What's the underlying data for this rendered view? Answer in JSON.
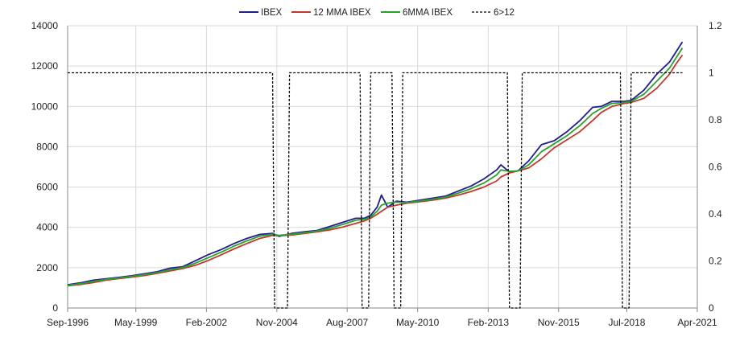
{
  "chart_data": {
    "type": "line",
    "title": "",
    "xlabel": "",
    "ylabel": "",
    "grid": true,
    "legend_position": "top",
    "x_axis": {
      "type": "date",
      "min": "1996-09-01",
      "max": "2021-04-01",
      "ticks": [
        "1996-09-01",
        "1999-05-01",
        "2002-02-01",
        "2004-11-01",
        "2007-08-01",
        "2010-05-01",
        "2013-02-01",
        "2015-11-01",
        "2018-07-01",
        "2021-04-01"
      ],
      "tick_labels": [
        "Sep-1996",
        "May-1999",
        "Feb-2002",
        "Nov-2004",
        "Aug-2007",
        "May-2010",
        "Feb-2013",
        "Nov-2015",
        "Jul-2018",
        "Apr-2021"
      ]
    },
    "y_axis_left": {
      "min": 0,
      "max": 14000,
      "ticks": [
        0,
        2000,
        4000,
        6000,
        8000,
        10000,
        12000,
        14000
      ],
      "tick_labels": [
        "0",
        "2000",
        "4000",
        "6000",
        "8000",
        "10000",
        "12000",
        "14000"
      ]
    },
    "y_axis_right": {
      "min": 0,
      "max": 1.2,
      "ticks": [
        0,
        0.2,
        0.4,
        0.6,
        0.8,
        1,
        1.2
      ],
      "tick_labels": [
        "0",
        "0.2",
        "0.4",
        "0.6",
        "0.8",
        "1",
        "1.2"
      ]
    },
    "series": [
      {
        "name": "IBEX",
        "axis": "left",
        "color": "#1f1f8a",
        "style": "solid",
        "points": [
          [
            "1996-09-01",
            1150
          ],
          [
            "1997-03-01",
            1250
          ],
          [
            "1997-09-01",
            1380
          ],
          [
            "1998-03-01",
            1450
          ],
          [
            "1998-09-01",
            1520
          ],
          [
            "1999-03-01",
            1600
          ],
          [
            "1999-09-01",
            1700
          ],
          [
            "2000-03-01",
            1800
          ],
          [
            "2000-09-01",
            1980
          ],
          [
            "2001-03-01",
            2050
          ],
          [
            "2001-09-01",
            2350
          ],
          [
            "2002-03-01",
            2650
          ],
          [
            "2002-09-01",
            2900
          ],
          [
            "2003-03-01",
            3200
          ],
          [
            "2003-09-01",
            3450
          ],
          [
            "2004-03-01",
            3650
          ],
          [
            "2004-09-01",
            3700
          ],
          [
            "2004-12-01",
            3550
          ],
          [
            "2005-06-01",
            3700
          ],
          [
            "2005-12-01",
            3780
          ],
          [
            "2006-06-01",
            3850
          ],
          [
            "2006-12-01",
            4050
          ],
          [
            "2007-06-01",
            4250
          ],
          [
            "2007-12-01",
            4450
          ],
          [
            "2008-04-01",
            4450
          ],
          [
            "2008-07-01",
            4600
          ],
          [
            "2008-10-01",
            5000
          ],
          [
            "2008-12-01",
            5600
          ],
          [
            "2009-03-01",
            5000
          ],
          [
            "2009-07-01",
            5300
          ],
          [
            "2009-12-01",
            5250
          ],
          [
            "2010-06-01",
            5350
          ],
          [
            "2010-12-01",
            5450
          ],
          [
            "2011-06-01",
            5550
          ],
          [
            "2011-12-01",
            5800
          ],
          [
            "2012-06-01",
            6050
          ],
          [
            "2012-12-01",
            6400
          ],
          [
            "2013-06-01",
            6850
          ],
          [
            "2013-08-01",
            7100
          ],
          [
            "2013-12-01",
            6750
          ],
          [
            "2014-04-01",
            6800
          ],
          [
            "2014-09-01",
            7300
          ],
          [
            "2015-03-01",
            8100
          ],
          [
            "2015-09-01",
            8300
          ],
          [
            "2016-03-01",
            8750
          ],
          [
            "2016-09-01",
            9300
          ],
          [
            "2017-03-01",
            9950
          ],
          [
            "2017-07-01",
            10000
          ],
          [
            "2017-12-01",
            10250
          ],
          [
            "2018-06-01",
            10250
          ],
          [
            "2018-09-01",
            10300
          ],
          [
            "2019-03-01",
            10800
          ],
          [
            "2019-09-01",
            11600
          ],
          [
            "2020-03-01",
            12200
          ],
          [
            "2020-06-01",
            12700
          ],
          [
            "2020-09-01",
            13200
          ]
        ]
      },
      {
        "name": "12 MMA IBEX",
        "axis": "left",
        "color": "#c0392b",
        "style": "solid",
        "points": [
          [
            "1996-09-01",
            1100
          ],
          [
            "1997-03-01",
            1170
          ],
          [
            "1997-09-01",
            1260
          ],
          [
            "1998-03-01",
            1380
          ],
          [
            "1998-09-01",
            1460
          ],
          [
            "1999-03-01",
            1530
          ],
          [
            "1999-09-01",
            1610
          ],
          [
            "2000-03-01",
            1720
          ],
          [
            "2000-09-01",
            1840
          ],
          [
            "2001-03-01",
            1960
          ],
          [
            "2001-09-01",
            2120
          ],
          [
            "2002-03-01",
            2360
          ],
          [
            "2002-09-01",
            2640
          ],
          [
            "2003-03-01",
            2930
          ],
          [
            "2003-09-01",
            3200
          ],
          [
            "2004-03-01",
            3450
          ],
          [
            "2004-09-01",
            3600
          ],
          [
            "2004-12-01",
            3580
          ],
          [
            "2005-06-01",
            3620
          ],
          [
            "2005-12-01",
            3700
          ],
          [
            "2006-06-01",
            3780
          ],
          [
            "2006-12-01",
            3880
          ],
          [
            "2007-06-01",
            4020
          ],
          [
            "2007-12-01",
            4200
          ],
          [
            "2008-04-01",
            4320
          ],
          [
            "2008-07-01",
            4450
          ],
          [
            "2008-10-01",
            4650
          ],
          [
            "2008-12-01",
            4800
          ],
          [
            "2009-03-01",
            5000
          ],
          [
            "2009-07-01",
            5100
          ],
          [
            "2009-12-01",
            5200
          ],
          [
            "2010-06-01",
            5270
          ],
          [
            "2010-12-01",
            5350
          ],
          [
            "2011-06-01",
            5450
          ],
          [
            "2011-12-01",
            5600
          ],
          [
            "2012-06-01",
            5780
          ],
          [
            "2012-12-01",
            6000
          ],
          [
            "2013-06-01",
            6300
          ],
          [
            "2013-08-01",
            6500
          ],
          [
            "2013-12-01",
            6700
          ],
          [
            "2014-04-01",
            6800
          ],
          [
            "2014-09-01",
            6950
          ],
          [
            "2015-03-01",
            7400
          ],
          [
            "2015-09-01",
            7950
          ],
          [
            "2016-03-01",
            8350
          ],
          [
            "2016-09-01",
            8750
          ],
          [
            "2017-03-01",
            9300
          ],
          [
            "2017-07-01",
            9700
          ],
          [
            "2017-12-01",
            10000
          ],
          [
            "2018-06-01",
            10150
          ],
          [
            "2018-09-01",
            10200
          ],
          [
            "2019-03-01",
            10400
          ],
          [
            "2019-09-01",
            10900
          ],
          [
            "2020-03-01",
            11600
          ],
          [
            "2020-06-01",
            12100
          ],
          [
            "2020-09-01",
            12550
          ]
        ]
      },
      {
        "name": "6MMA IBEX",
        "axis": "left",
        "color": "#2ca02c",
        "style": "solid",
        "points": [
          [
            "1996-09-01",
            1120
          ],
          [
            "1997-03-01",
            1210
          ],
          [
            "1997-09-01",
            1320
          ],
          [
            "1998-03-01",
            1420
          ],
          [
            "1998-09-01",
            1490
          ],
          [
            "1999-03-01",
            1570
          ],
          [
            "1999-09-01",
            1660
          ],
          [
            "2000-03-01",
            1760
          ],
          [
            "2000-09-01",
            1900
          ],
          [
            "2001-03-01",
            2010
          ],
          [
            "2001-09-01",
            2230
          ],
          [
            "2002-03-01",
            2500
          ],
          [
            "2002-09-01",
            2770
          ],
          [
            "2003-03-01",
            3070
          ],
          [
            "2003-09-01",
            3330
          ],
          [
            "2004-03-01",
            3560
          ],
          [
            "2004-09-01",
            3660
          ],
          [
            "2004-12-01",
            3600
          ],
          [
            "2005-06-01",
            3660
          ],
          [
            "2005-12-01",
            3740
          ],
          [
            "2006-06-01",
            3820
          ],
          [
            "2006-12-01",
            3960
          ],
          [
            "2007-06-01",
            4150
          ],
          [
            "2007-12-01",
            4350
          ],
          [
            "2008-04-01",
            4400
          ],
          [
            "2008-07-01",
            4520
          ],
          [
            "2008-10-01",
            4800
          ],
          [
            "2008-12-01",
            5100
          ],
          [
            "2009-03-01",
            5200
          ],
          [
            "2009-07-01",
            5250
          ],
          [
            "2009-12-01",
            5230
          ],
          [
            "2010-06-01",
            5310
          ],
          [
            "2010-12-01",
            5400
          ],
          [
            "2011-06-01",
            5500
          ],
          [
            "2011-12-01",
            5700
          ],
          [
            "2012-06-01",
            5920
          ],
          [
            "2012-12-01",
            6200
          ],
          [
            "2013-06-01",
            6600
          ],
          [
            "2013-08-01",
            6850
          ],
          [
            "2013-12-01",
            6780
          ],
          [
            "2014-04-01",
            6800
          ],
          [
            "2014-09-01",
            7100
          ],
          [
            "2015-03-01",
            7750
          ],
          [
            "2015-09-01",
            8150
          ],
          [
            "2016-03-01",
            8550
          ],
          [
            "2016-09-01",
            9050
          ],
          [
            "2017-03-01",
            9650
          ],
          [
            "2017-07-01",
            9900
          ],
          [
            "2017-12-01",
            10150
          ],
          [
            "2018-06-01",
            10200
          ],
          [
            "2018-09-01",
            10250
          ],
          [
            "2019-03-01",
            10600
          ],
          [
            "2019-09-01",
            11250
          ],
          [
            "2020-03-01",
            11900
          ],
          [
            "2020-06-01",
            12400
          ],
          [
            "2020-09-01",
            12900
          ]
        ]
      },
      {
        "name": "6>12",
        "axis": "right",
        "color": "#000000",
        "style": "dashed",
        "points": [
          [
            "1996-09-01",
            1
          ],
          [
            "2004-09-01",
            1
          ],
          [
            "2004-10-01",
            0
          ],
          [
            "2005-04-01",
            0
          ],
          [
            "2005-05-01",
            1
          ],
          [
            "2008-02-01",
            1
          ],
          [
            "2008-03-01",
            0
          ],
          [
            "2008-06-01",
            0
          ],
          [
            "2008-07-01",
            1
          ],
          [
            "2009-05-01",
            1
          ],
          [
            "2009-06-01",
            0
          ],
          [
            "2009-09-01",
            0
          ],
          [
            "2009-10-01",
            1
          ],
          [
            "2013-11-01",
            1
          ],
          [
            "2013-12-01",
            0
          ],
          [
            "2014-05-01",
            0
          ],
          [
            "2014-06-01",
            1
          ],
          [
            "2018-04-01",
            1
          ],
          [
            "2018-05-01",
            0
          ],
          [
            "2018-08-01",
            0
          ],
          [
            "2018-09-01",
            1
          ],
          [
            "2020-09-01",
            1
          ]
        ]
      }
    ]
  }
}
